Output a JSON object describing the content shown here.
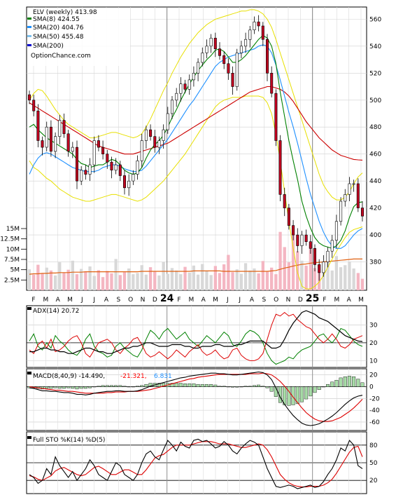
{
  "chart_data": [
    {
      "type": "candlestick",
      "panel": "price",
      "legend": [
        {
          "label": "ELV (weekly) 413.98",
          "color": "#000000"
        },
        {
          "label": "SMA(8) 424.55",
          "color": "#008000"
        },
        {
          "label": "SMA(20) 404.76",
          "color": "#1e90ff"
        },
        {
          "label": "SMA(50) 455.48",
          "color": "#7ec0ee"
        },
        {
          "label": "SMA(200)",
          "color": "#0000cd"
        },
        {
          "label": "OptionChance.com",
          "color": "#000000"
        }
      ],
      "y_ticks": [
        "560",
        "540",
        "520",
        "500",
        "480",
        "460",
        "440",
        "420",
        "400",
        "380"
      ],
      "ylim": [
        360,
        568
      ],
      "x_ticks": [
        "F",
        "M",
        "A",
        "M",
        "J",
        "J",
        "A",
        "S",
        "O",
        "N",
        "D",
        "24",
        "F",
        "M",
        "A",
        "M",
        "J",
        "J",
        "A",
        "S",
        "O",
        "N",
        "D",
        "25",
        "F",
        "M",
        "A",
        "M"
      ],
      "bold_ticks": [
        "24",
        "25"
      ],
      "closes": [
        500,
        492,
        470,
        465,
        480,
        462,
        473,
        485,
        475,
        462,
        465,
        440,
        448,
        445,
        452,
        470,
        465,
        460,
        454,
        448,
        452,
        444,
        435,
        440,
        445,
        455,
        470,
        478,
        473,
        465,
        470,
        478,
        490,
        500,
        505,
        512,
        508,
        515,
        520,
        528,
        535,
        540,
        546,
        538,
        533,
        527,
        520,
        510,
        535,
        540,
        545,
        552,
        558,
        555,
        545,
        520,
        505,
        470,
        430,
        420,
        407,
        400,
        392,
        400,
        395,
        390,
        378,
        372,
        380,
        388,
        396,
        410,
        425,
        430,
        438,
        438,
        420,
        413.98
      ],
      "sma8": [
        480,
        482,
        478,
        475,
        472,
        470,
        468,
        466,
        464,
        462,
        460,
        456,
        453,
        452,
        450,
        451,
        452,
        452,
        454,
        456,
        455,
        452,
        448,
        446,
        445,
        446,
        450,
        457,
        463,
        467,
        470,
        474,
        480,
        487,
        493,
        500,
        506,
        512,
        517,
        522,
        526,
        530,
        533,
        537,
        538,
        536,
        532,
        528,
        528,
        530,
        533,
        537,
        541,
        545,
        548,
        546,
        540,
        527,
        506,
        488,
        470,
        455,
        441,
        425,
        414,
        405,
        398,
        394,
        392,
        391,
        390,
        392,
        396,
        403,
        413,
        421,
        424,
        424.55
      ],
      "sma20": [
        445,
        452,
        457,
        460,
        461,
        460,
        458,
        456,
        454,
        452,
        450,
        449,
        448,
        447,
        447,
        447,
        448,
        450,
        451,
        452,
        452,
        451,
        449,
        448,
        447,
        447,
        448,
        451,
        455,
        459,
        463,
        467,
        471,
        476,
        481,
        486,
        491,
        496,
        500,
        505,
        510,
        515,
        520,
        525,
        528,
        530,
        532,
        533,
        534,
        535,
        536,
        537,
        538,
        540,
        541,
        540,
        535,
        526,
        515,
        503,
        491,
        480,
        468,
        455,
        442,
        430,
        420,
        410,
        402,
        396,
        392,
        390,
        390,
        392,
        396,
        400,
        403,
        404.76
      ],
      "sma50": [
        498,
        496,
        494,
        492,
        490,
        488,
        486,
        484,
        482,
        480,
        478,
        476,
        474,
        472,
        470,
        468,
        466,
        465,
        464,
        463,
        462,
        461,
        460,
        460,
        460,
        461,
        462,
        463,
        464,
        465,
        466,
        467,
        468,
        470,
        472,
        474,
        476,
        478,
        480,
        482,
        484,
        486,
        488,
        490,
        492,
        494,
        496,
        498,
        500,
        502,
        504,
        506,
        507,
        508,
        509,
        510,
        510,
        509,
        508,
        506,
        503,
        499,
        494,
        489,
        484,
        480,
        476,
        472,
        469,
        466,
        463,
        461,
        459,
        458,
        457,
        456,
        455.7,
        455.48
      ],
      "bb_upper": [
        500,
        505,
        508,
        507,
        503,
        498,
        493,
        489,
        485,
        482,
        480,
        478,
        476,
        474,
        472,
        472,
        473,
        474,
        475,
        476,
        476,
        475,
        474,
        473,
        472,
        473,
        475,
        480,
        486,
        493,
        500,
        507,
        513,
        520,
        526,
        532,
        537,
        542,
        546,
        550,
        553,
        556,
        558,
        560,
        561,
        562,
        563,
        564,
        565,
        566,
        566,
        567,
        567,
        566,
        564,
        560,
        554,
        545,
        535,
        525,
        515,
        505,
        495,
        485,
        475,
        465,
        455,
        445,
        437,
        432,
        428,
        426,
        426,
        428,
        432,
        438,
        443,
        446
      ],
      "bb_lower": [
        455,
        450,
        448,
        445,
        442,
        440,
        437,
        434,
        432,
        430,
        428,
        427,
        426,
        425,
        425,
        426,
        427,
        428,
        429,
        430,
        430,
        429,
        428,
        427,
        426,
        425,
        426,
        428,
        431,
        434,
        437,
        440,
        444,
        448,
        452,
        456,
        460,
        465,
        470,
        475,
        480,
        485,
        490,
        495,
        498,
        500,
        501,
        502,
        502,
        502,
        503,
        503,
        503,
        503,
        502,
        498,
        490,
        475,
        455,
        432,
        410,
        390,
        372,
        362,
        360,
        360,
        362,
        365,
        370,
        376,
        382,
        388,
        393,
        398,
        402,
        404,
        405,
        406
      ]
    },
    {
      "type": "bar",
      "panel": "volume",
      "y_ticks": [
        "15M",
        "12.5M",
        "10M",
        "7.5M",
        "5M",
        "2.5M"
      ],
      "ylim": [
        0,
        15
      ],
      "values": [
        5.1,
        3.8,
        6.2,
        4.0,
        5.5,
        4.8,
        3.6,
        6.8,
        4.3,
        5.0,
        7.2,
        3.9,
        5.2,
        4.6,
        5.8,
        3.5,
        4.9,
        3.2,
        4.7,
        4.1,
        7.6,
        3.7,
        4.4,
        5.3,
        3.9,
        4.2,
        6.1,
        3.8,
        5.6,
        4.5,
        3.6,
        6.9,
        4.0,
        5.4,
        4.8,
        3.9,
        5.7,
        4.3,
        6.0,
        3.8,
        6.4,
        4.6,
        3.7,
        5.9,
        4.2,
        6.3,
        8.6,
        4.4,
        5.1,
        4.0,
        6.6,
        4.8,
        5.3,
        4.1,
        7.1,
        4.5,
        5.5,
        3.9,
        14.2,
        10.5,
        6.8,
        13.8,
        9.5,
        7.2,
        6.0,
        11.2,
        5.4,
        6.3,
        5.2,
        9.1,
        4.8,
        8.3,
        5.6,
        6.1,
        7.0,
        5.3,
        4.2,
        2.8
      ],
      "avg": [
        3.9,
        4.0,
        4.0,
        4.1,
        4.1,
        4.2,
        4.2,
        4.3,
        4.3,
        4.3,
        4.4,
        4.4,
        4.4,
        4.5,
        4.5,
        4.5,
        4.5,
        4.5,
        4.5,
        4.5,
        4.5,
        4.5,
        4.5,
        4.5,
        4.5,
        4.5,
        4.6,
        4.6,
        4.6,
        4.6,
        4.6,
        4.6,
        4.6,
        4.6,
        4.6,
        4.6,
        4.6,
        4.6,
        4.7,
        4.7,
        4.7,
        4.7,
        4.7,
        4.7,
        4.7,
        4.6,
        4.6,
        4.6,
        4.6,
        4.6,
        4.6,
        4.6,
        4.6,
        4.6,
        4.6,
        4.6,
        4.7,
        4.8,
        5.1,
        5.4,
        5.6,
        5.9,
        6.1,
        6.3,
        6.4,
        6.6,
        6.7,
        6.8,
        6.9,
        7.0,
        7.1,
        7.2,
        7.3,
        7.4,
        7.5,
        7.6,
        7.6,
        7.6
      ]
    },
    {
      "type": "line",
      "panel": "adx",
      "legend": [
        {
          "label": "ADX(14) 20.72",
          "color": "#000000"
        }
      ],
      "y_ticks": [
        "30",
        "20",
        "10"
      ],
      "ylim": [
        7,
        40
      ],
      "adx": [
        15,
        15,
        16,
        17,
        17,
        16,
        16,
        15,
        15,
        14,
        14,
        15,
        16,
        17,
        17,
        16,
        15,
        15,
        14,
        14,
        15,
        16,
        17,
        17,
        18,
        18,
        19,
        20,
        20,
        19,
        18,
        18,
        18,
        19,
        19,
        19,
        18,
        18,
        17,
        17,
        18,
        18,
        18,
        19,
        19,
        18,
        18,
        18,
        19,
        19,
        20,
        21,
        21,
        21,
        21,
        19,
        17,
        17,
        18,
        22,
        27,
        31,
        34,
        37,
        38,
        37,
        36,
        34,
        33,
        32,
        30,
        28,
        26,
        24,
        23,
        22,
        21,
        20.72
      ],
      "di_plus": [
        21,
        25,
        18,
        16,
        20,
        17,
        24,
        21,
        19,
        16,
        14,
        13,
        16,
        22,
        25,
        18,
        15,
        14,
        12,
        13,
        18,
        20,
        17,
        15,
        13,
        12,
        16,
        22,
        27,
        25,
        22,
        26,
        28,
        25,
        22,
        24,
        26,
        22,
        20,
        18,
        21,
        24,
        22,
        20,
        23,
        26,
        24,
        19,
        18,
        21,
        25,
        27,
        26,
        24,
        20,
        14,
        10,
        8,
        9,
        10,
        12,
        11,
        14,
        16,
        17,
        18,
        21,
        24,
        25,
        22,
        20,
        23,
        28,
        27,
        24,
        21,
        19,
        18
      ],
      "di_minus": [
        16,
        14,
        19,
        21,
        17,
        22,
        15,
        16,
        18,
        21,
        23,
        24,
        20,
        14,
        12,
        16,
        20,
        21,
        22,
        20,
        16,
        14,
        17,
        19,
        22,
        23,
        19,
        14,
        12,
        13,
        15,
        13,
        11,
        13,
        16,
        14,
        12,
        15,
        17,
        19,
        15,
        13,
        14,
        16,
        13,
        11,
        12,
        16,
        17,
        13,
        11,
        10,
        10,
        11,
        14,
        22,
        30,
        36,
        35,
        37,
        35,
        36,
        33,
        31,
        29,
        28,
        25,
        22,
        20,
        22,
        25,
        22,
        18,
        17,
        19,
        22,
        23,
        24
      ]
    },
    {
      "type": "line",
      "panel": "macd",
      "legend": [
        {
          "label": "MACD(8,40,9) -14.490,",
          "color": "#000000"
        },
        {
          "label": "-21.321,",
          "color": "#ff0000"
        },
        {
          "label": "6.831",
          "color": "#1e90ff"
        }
      ],
      "y_ticks": [
        "20",
        "0",
        "-20",
        "-40",
        "-60"
      ],
      "ylim": [
        -72,
        28
      ],
      "macd": [
        -2,
        -3,
        -5,
        -7,
        -7,
        -8,
        -8,
        -9,
        -10,
        -10,
        -11,
        -13,
        -13,
        -14,
        -13,
        -11,
        -10,
        -9,
        -8,
        -8,
        -7,
        -7,
        -8,
        -8,
        -8,
        -7,
        -5,
        -2,
        1,
        3,
        5,
        7,
        9,
        11,
        13,
        15,
        16,
        18,
        19,
        20,
        21,
        22,
        23,
        23,
        22,
        22,
        21,
        20,
        20,
        21,
        22,
        23,
        24,
        25,
        24,
        20,
        12,
        -2,
        -18,
        -30,
        -40,
        -49,
        -56,
        -62,
        -65,
        -66,
        -65,
        -63,
        -59,
        -55,
        -50,
        -44,
        -37,
        -30,
        -24,
        -19,
        -16,
        -14.49
      ],
      "signal": [
        0,
        -1,
        -2,
        -3,
        -4,
        -5,
        -6,
        -6,
        -7,
        -8,
        -8,
        -9,
        -10,
        -11,
        -11,
        -11,
        -11,
        -11,
        -10,
        -10,
        -9,
        -9,
        -9,
        -8,
        -8,
        -8,
        -7,
        -6,
        -5,
        -3,
        -1,
        1,
        3,
        5,
        7,
        9,
        11,
        13,
        14,
        16,
        17,
        18,
        19,
        20,
        21,
        21,
        21,
        21,
        21,
        21,
        21,
        22,
        22,
        22,
        23,
        22,
        20,
        15,
        9,
        1,
        -8,
        -18,
        -27,
        -36,
        -44,
        -50,
        -55,
        -58,
        -59,
        -59,
        -58,
        -55,
        -52,
        -47,
        -42,
        -36,
        -29,
        -21.32
      ]
    },
    {
      "type": "line",
      "panel": "stochastic",
      "legend": [
        {
          "label": "Full STO %K(14) %D(5)",
          "color": "#000000"
        }
      ],
      "y_ticks": [
        "80",
        "50",
        "20"
      ],
      "ylim": [
        0,
        100
      ],
      "k": [
        30,
        25,
        15,
        20,
        40,
        30,
        60,
        45,
        35,
        25,
        35,
        20,
        30,
        40,
        55,
        45,
        30,
        25,
        20,
        35,
        50,
        45,
        30,
        25,
        20,
        30,
        50,
        65,
        70,
        60,
        55,
        72,
        88,
        80,
        70,
        85,
        78,
        75,
        88,
        90,
        86,
        88,
        82,
        75,
        78,
        86,
        80,
        70,
        65,
        75,
        82,
        88,
        85,
        80,
        60,
        40,
        25,
        10,
        8,
        10,
        12,
        10,
        6,
        8,
        10,
        12,
        8,
        10,
        18,
        30,
        40,
        55,
        75,
        70,
        88,
        80,
        45,
        40
      ],
      "d": [
        28,
        26,
        22,
        20,
        24,
        28,
        36,
        40,
        42,
        38,
        34,
        30,
        28,
        30,
        36,
        42,
        44,
        40,
        35,
        30,
        30,
        34,
        38,
        38,
        34,
        30,
        30,
        38,
        48,
        58,
        62,
        64,
        70,
        76,
        80,
        80,
        80,
        80,
        82,
        84,
        86,
        86,
        86,
        84,
        82,
        82,
        82,
        80,
        78,
        76,
        76,
        78,
        80,
        82,
        80,
        72,
        60,
        45,
        30,
        22,
        16,
        12,
        10,
        9,
        9,
        10,
        10,
        10,
        12,
        16,
        22,
        32,
        44,
        56,
        68,
        76,
        78,
        60
      ]
    }
  ]
}
